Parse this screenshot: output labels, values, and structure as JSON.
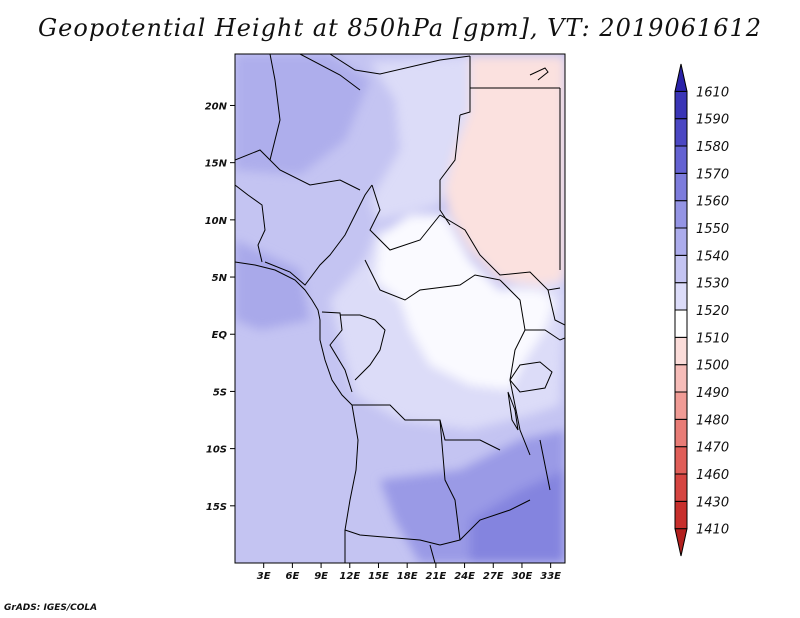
{
  "chart_data": {
    "type": "heatmap",
    "title": "Geopotential Height at 850hPa [gpm], VT: 2019061612",
    "xlabel": "",
    "ylabel": "",
    "x_ticks": [
      "3E",
      "6E",
      "9E",
      "12E",
      "15E",
      "18E",
      "21E",
      "24E",
      "27E",
      "30E",
      "33E"
    ],
    "x_tick_values": [
      3,
      6,
      9,
      12,
      15,
      18,
      21,
      24,
      27,
      30,
      33
    ],
    "y_ticks": [
      "20N",
      "15N",
      "10N",
      "5N",
      "EQ",
      "5S",
      "10S",
      "15S"
    ],
    "y_tick_values": [
      20,
      15,
      10,
      5,
      0,
      -5,
      -10,
      -15
    ],
    "xlim": [
      0,
      34.5
    ],
    "ylim": [
      -20,
      24.5
    ],
    "colorbar": {
      "levels": [
        1410,
        1430,
        1460,
        1470,
        1480,
        1490,
        1500,
        1510,
        1520,
        1530,
        1540,
        1550,
        1560,
        1570,
        1580,
        1590,
        1610
      ],
      "level_labels": [
        "1410",
        "1430",
        "1460",
        "1470",
        "1480",
        "1490",
        "1500",
        "1510",
        "1520",
        "1530",
        "1540",
        "1550",
        "1560",
        "1570",
        "1580",
        "1590",
        "1610"
      ],
      "colors": [
        "#b3201e",
        "#c72f2c",
        "#d64541",
        "#e05e58",
        "#e87c76",
        "#f09b95",
        "#f6bcb8",
        "#fbdcd9",
        "#ffffff",
        "#dcdcf9",
        "#c4c4f2",
        "#acacec",
        "#9494e4",
        "#7d7cdc",
        "#6462d2",
        "#4b47c3",
        "#3a35b6",
        "#2a22a8"
      ],
      "extend": "both"
    },
    "fields": [
      {
        "name": "1530-1540",
        "value_range": [
          1530,
          1540
        ]
      },
      {
        "name": "1520-1530",
        "value_range": [
          1520,
          1530
        ]
      },
      {
        "name": "1510-1520",
        "value_range": [
          1510,
          1520
        ]
      },
      {
        "name": "1500-1510",
        "value_range": [
          1500,
          1510
        ]
      }
    ],
    "grid": false
  },
  "footer": {
    "credit": "GrADS: IGES/COLA"
  }
}
